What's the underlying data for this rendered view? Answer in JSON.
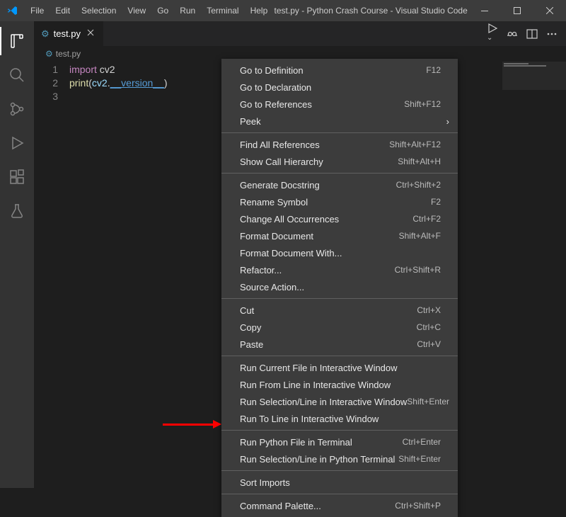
{
  "titlebar": {
    "menus": [
      "File",
      "Edit",
      "Selection",
      "View",
      "Go",
      "Run",
      "Terminal",
      "Help"
    ],
    "title": "test.py - Python Crash Course - Visual Studio Code"
  },
  "tab": {
    "filename": "test.py"
  },
  "breadcrumb": {
    "filename": "test.py"
  },
  "code": {
    "lines": [
      "1",
      "2",
      "3"
    ],
    "line1": {
      "kw": "import",
      "mod": " cv2"
    },
    "line2": {
      "fn": "print",
      "open": "(",
      "var": "cv2",
      "dot": ".",
      "attr": "__version__",
      "close": ")"
    }
  },
  "context_menu": {
    "groups": [
      [
        {
          "label": "Go to Definition",
          "shortcut": "F12"
        },
        {
          "label": "Go to Declaration",
          "shortcut": ""
        },
        {
          "label": "Go to References",
          "shortcut": "Shift+F12"
        },
        {
          "label": "Peek",
          "shortcut": "",
          "submenu": true
        }
      ],
      [
        {
          "label": "Find All References",
          "shortcut": "Shift+Alt+F12"
        },
        {
          "label": "Show Call Hierarchy",
          "shortcut": "Shift+Alt+H"
        }
      ],
      [
        {
          "label": "Generate Docstring",
          "shortcut": "Ctrl+Shift+2"
        },
        {
          "label": "Rename Symbol",
          "shortcut": "F2"
        },
        {
          "label": "Change All Occurrences",
          "shortcut": "Ctrl+F2"
        },
        {
          "label": "Format Document",
          "shortcut": "Shift+Alt+F"
        },
        {
          "label": "Format Document With...",
          "shortcut": ""
        },
        {
          "label": "Refactor...",
          "shortcut": "Ctrl+Shift+R"
        },
        {
          "label": "Source Action...",
          "shortcut": ""
        }
      ],
      [
        {
          "label": "Cut",
          "shortcut": "Ctrl+X"
        },
        {
          "label": "Copy",
          "shortcut": "Ctrl+C"
        },
        {
          "label": "Paste",
          "shortcut": "Ctrl+V"
        }
      ],
      [
        {
          "label": "Run Current File in Interactive Window",
          "shortcut": ""
        },
        {
          "label": "Run From Line in Interactive Window",
          "shortcut": ""
        },
        {
          "label": "Run Selection/Line in Interactive Window",
          "shortcut": "Shift+Enter"
        },
        {
          "label": "Run To Line in Interactive Window",
          "shortcut": ""
        }
      ],
      [
        {
          "label": "Run Python File in Terminal",
          "shortcut": "Ctrl+Enter"
        },
        {
          "label": "Run Selection/Line in Python Terminal",
          "shortcut": "Shift+Enter"
        }
      ],
      [
        {
          "label": "Sort Imports",
          "shortcut": ""
        }
      ],
      [
        {
          "label": "Command Palette...",
          "shortcut": "Ctrl+Shift+P"
        }
      ]
    ]
  },
  "colors": {
    "titlebar_bg": "#3c3c3c",
    "editor_bg": "#1e1e1e",
    "activity_bg": "#333333",
    "tab_bg": "#252526",
    "menu_bg": "#3c3c3c",
    "arrow": "#ff0000",
    "keyword": "#c586c0",
    "function": "#dcdcaa",
    "variable": "#9cdcfe",
    "attribute": "#569cd6"
  }
}
